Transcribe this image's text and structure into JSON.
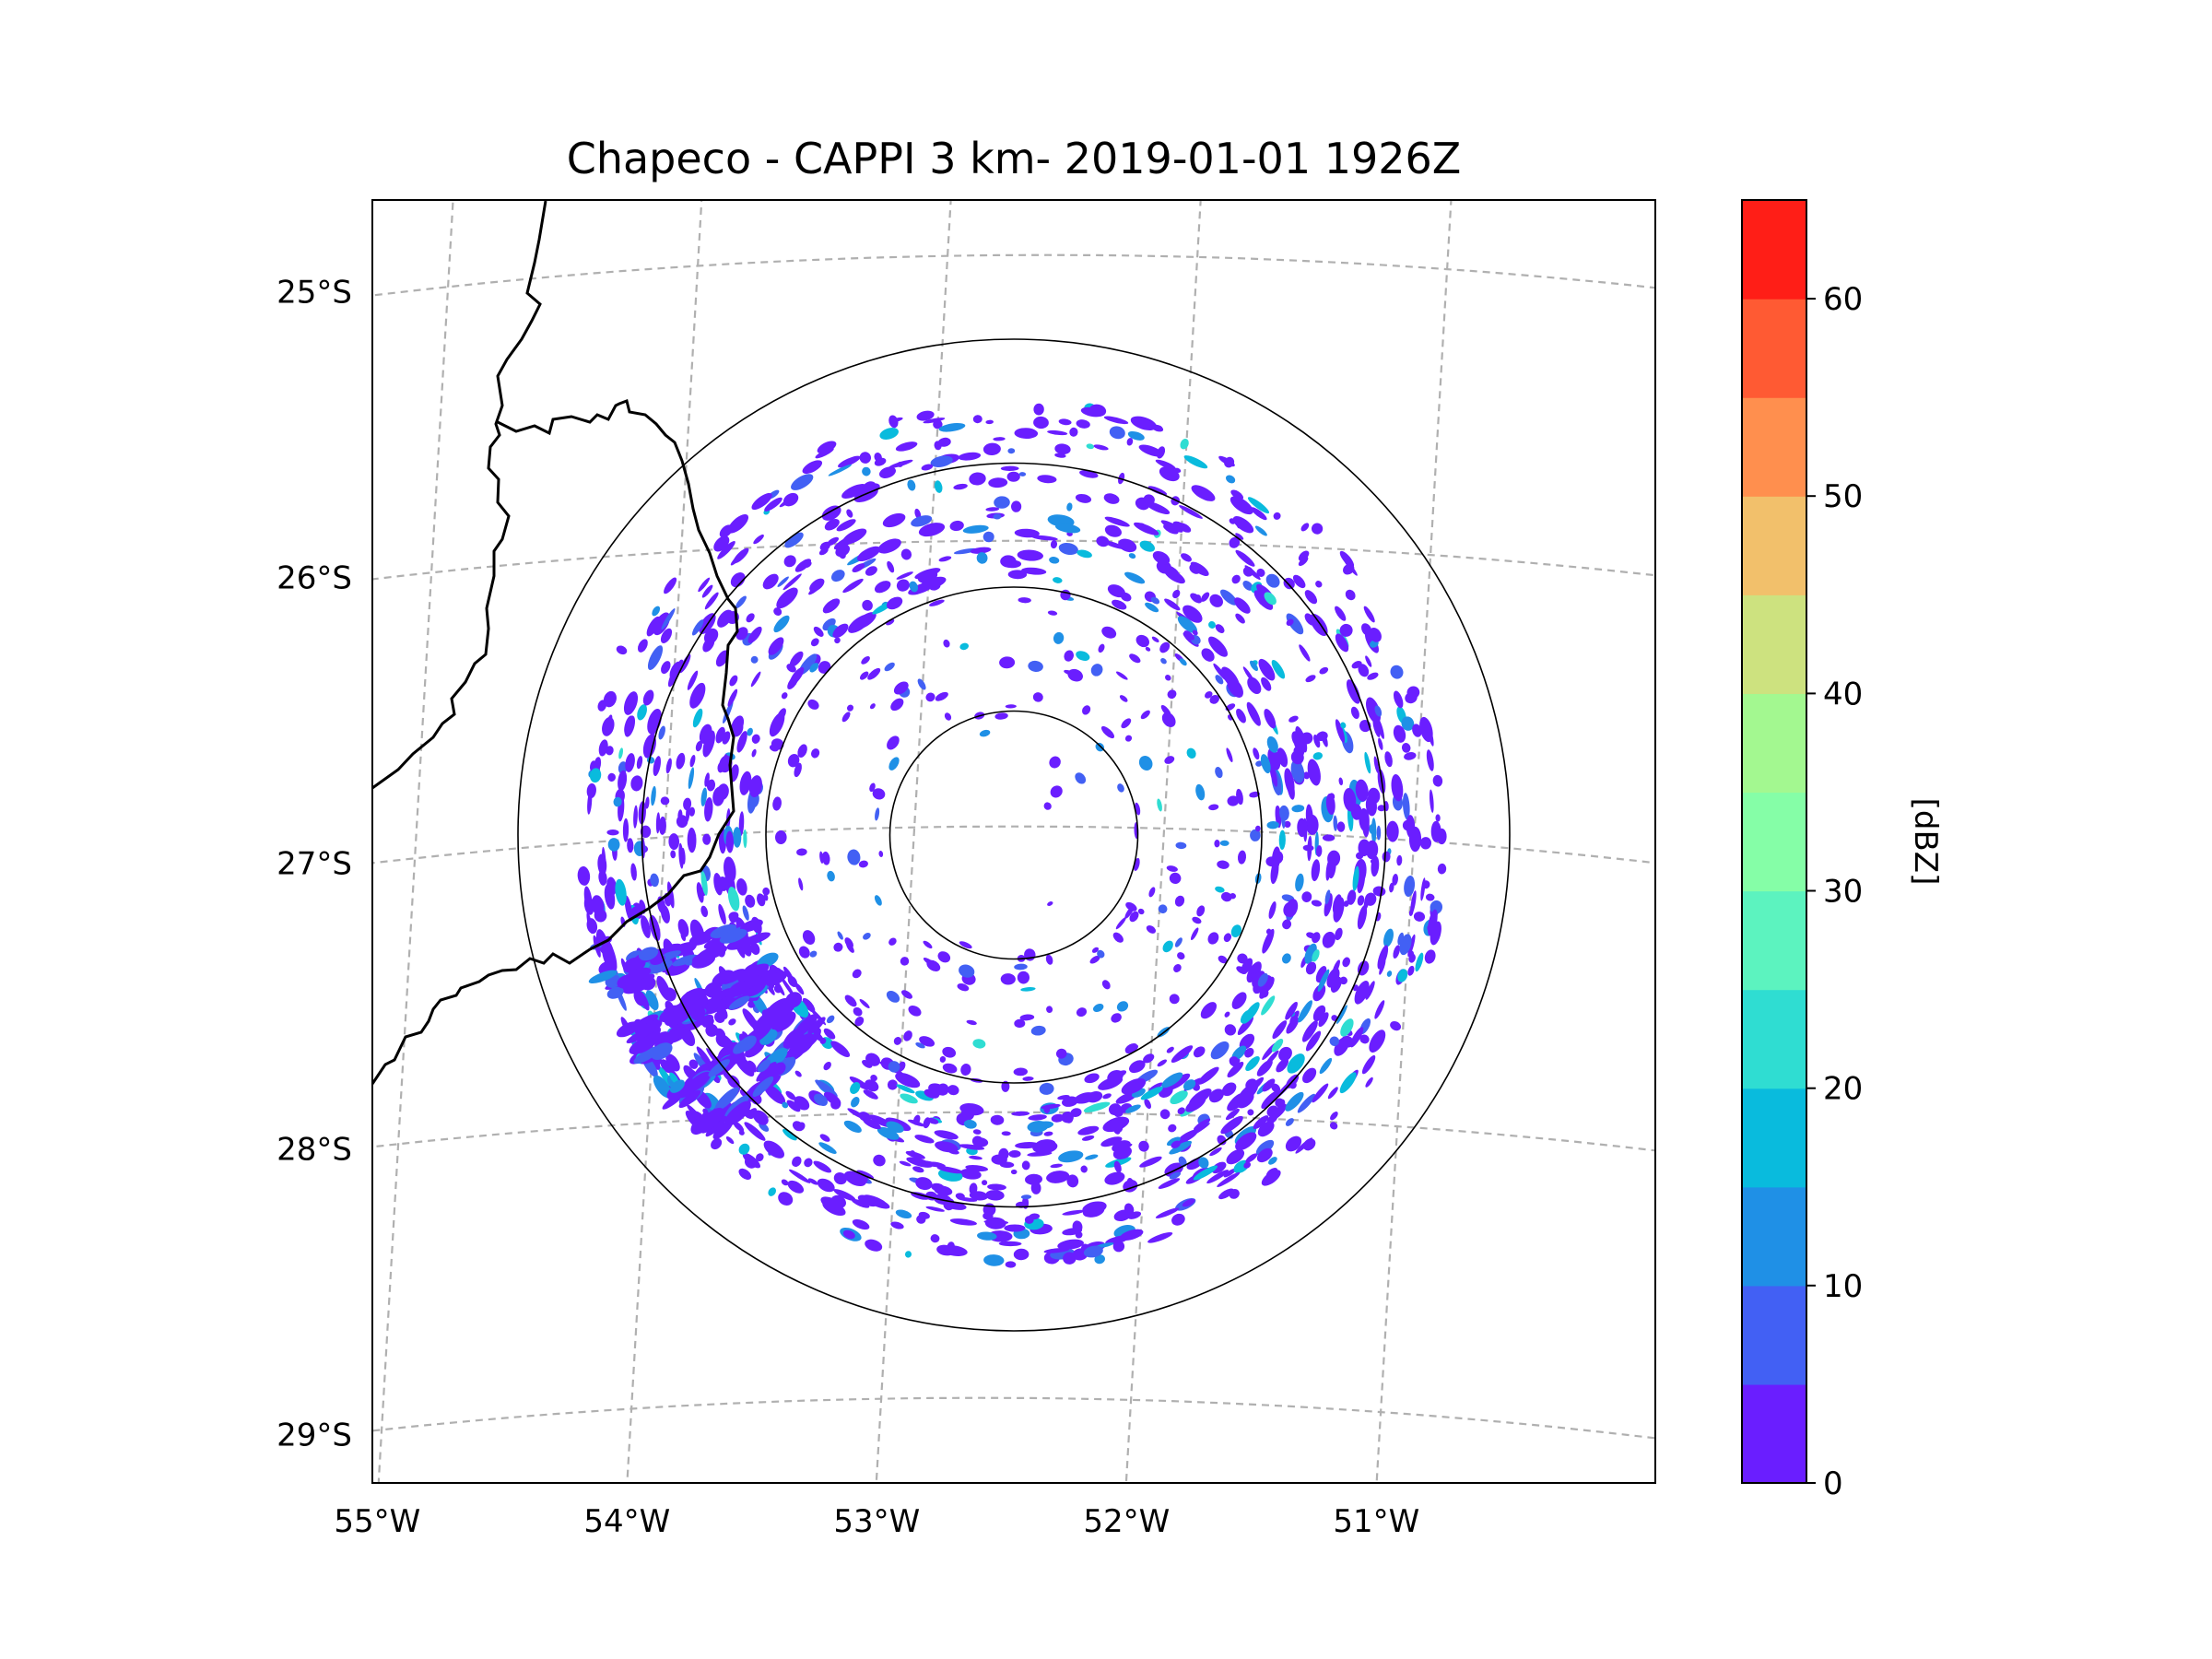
{
  "chart_data": {
    "type": "heatmap",
    "title": "Chapeco - CAPPI 3 km- 2019-01-01 1926Z",
    "projection": "map",
    "xlabel": "",
    "ylabel": "",
    "lon_range": [
      -55.17,
      -50.05
    ],
    "lat_range": [
      -29.27,
      -24.78
    ],
    "grid": true,
    "x_ticks": [
      "55°W",
      "54°W",
      "53°W",
      "52°W",
      "51°W"
    ],
    "x_tick_values": [
      -55,
      -54,
      -53,
      -52,
      -51
    ],
    "y_ticks": [
      "25°S",
      "26°S",
      "27°S",
      "28°S",
      "29°S"
    ],
    "y_tick_values": [
      -25,
      -26,
      -27,
      -28,
      -29
    ],
    "radar_center": {
      "lon": -52.6,
      "lat": -27.03
    },
    "range_rings_km": [
      50,
      100,
      150,
      200
    ],
    "echo_range_km": [
      0,
      175
    ],
    "typical_reflectivity_dbz": [
      0,
      15
    ],
    "colorbar": {
      "label": "[dBZ]",
      "min": 0,
      "max": 65,
      "step": 5,
      "ticks": [
        0,
        10,
        20,
        30,
        40,
        50,
        60
      ],
      "tick_labels": [
        "0",
        "10",
        "20",
        "30",
        "40",
        "50",
        "60"
      ],
      "colors": [
        "#6a1eff",
        "#4260f4",
        "#1f90e6",
        "#09bbdd",
        "#2fddd2",
        "#5cf3bf",
        "#85fea7",
        "#a3f890",
        "#cde27f",
        "#f2c06b",
        "#ff8f4e",
        "#ff5a33",
        "#ff1e17"
      ]
    }
  }
}
